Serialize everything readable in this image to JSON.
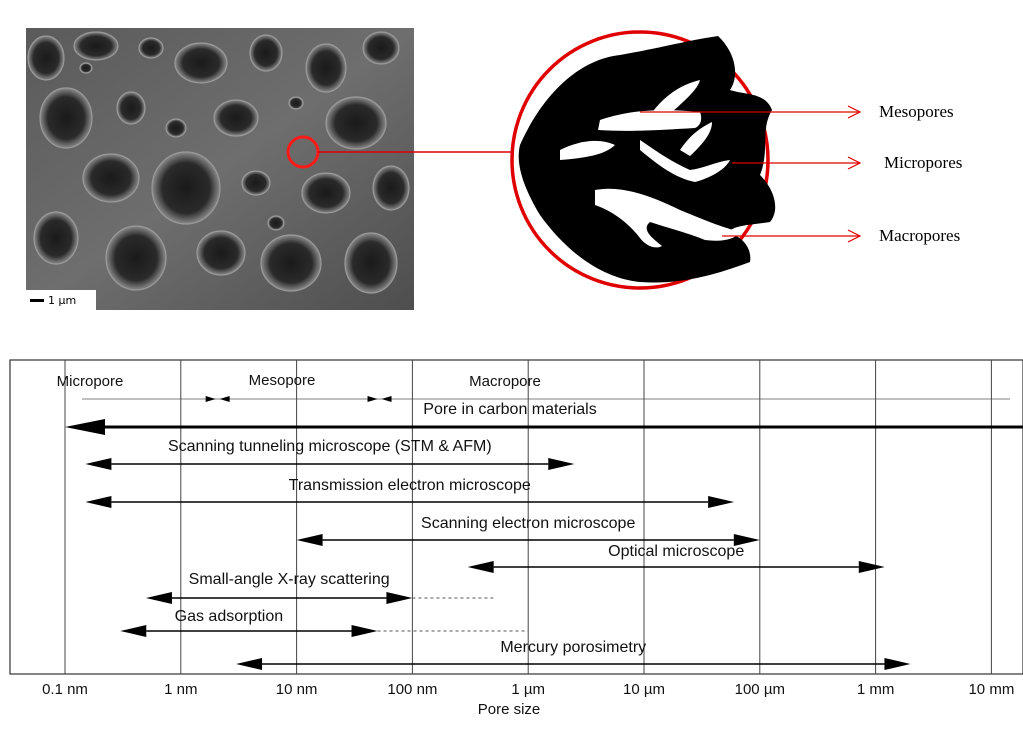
{
  "micrograph": {
    "scale_label": "1 µm"
  },
  "zoom_labels": {
    "mesopores": "Mesopores",
    "micropores": "Micropores",
    "macropores": "Macropores"
  },
  "colors": {
    "accent": "#e00000",
    "ink": "#000000"
  },
  "chart_data": {
    "type": "range-diagram",
    "xlabel": "Pore size",
    "scale": "log",
    "ticks": [
      "0.1 nm",
      "1 nm",
      "10 nm",
      "100 nm",
      "1 µm",
      "10 µm",
      "100 µm",
      "1 mm",
      "10 mm"
    ],
    "tick_values_nm": [
      0.1,
      1,
      10,
      100,
      1000,
      10000,
      100000,
      1000000,
      10000000
    ],
    "categories": [
      {
        "label": "Micropore",
        "from_nm": 0.15,
        "to_nm": 2
      },
      {
        "label": "Mesopore",
        "from_nm": 2,
        "to_nm": 50
      },
      {
        "label": "Macropore",
        "from_nm": 50,
        "to_nm": 40000000
      }
    ],
    "ranges": [
      {
        "label": "Pore in carbon materials",
        "from_nm": 0.1,
        "to_nm": 10000000,
        "dashed_to_nm": null
      },
      {
        "label": "Scanning tunneling microscope (STM & AFM)",
        "from_nm": 0.15,
        "to_nm": 2500,
        "dashed_to_nm": null
      },
      {
        "label": "Transmission electron microscope",
        "from_nm": 0.15,
        "to_nm": 60000,
        "dashed_to_nm": null
      },
      {
        "label": "Scanning electron microscope",
        "from_nm": 10,
        "to_nm": 100000,
        "dashed_to_nm": null
      },
      {
        "label": "Optical microscope",
        "from_nm": 300,
        "to_nm": 1200000,
        "dashed_to_nm": null
      },
      {
        "label": "Small-angle X-ray scattering",
        "from_nm": 0.5,
        "to_nm": 100,
        "dashed_to_nm": 500
      },
      {
        "label": "Gas adsorption",
        "from_nm": 0.3,
        "to_nm": 50,
        "dashed_to_nm": 1000
      },
      {
        "label": "Mercury porosimetry",
        "from_nm": 3,
        "to_nm": 2000000,
        "dashed_to_nm": null
      }
    ]
  }
}
